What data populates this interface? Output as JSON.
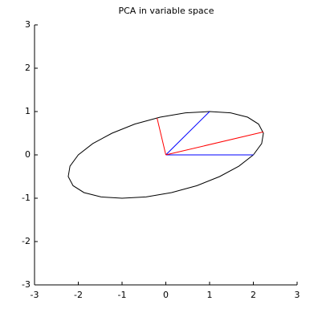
{
  "chart_data": {
    "type": "line",
    "title": "PCA in variable space",
    "xlim": [
      -3,
      3
    ],
    "ylim": [
      -3,
      3
    ],
    "xticks": [
      -3,
      -2,
      -1,
      0,
      1,
      2,
      3
    ],
    "yticks": [
      -3,
      -2,
      -1,
      0,
      1,
      2,
      3
    ],
    "series": [
      {
        "color": "#000000",
        "x": [
          2,
          2.19,
          2.23,
          2.12,
          1.87,
          1.48,
          1,
          0.45,
          -0.13,
          -0.71,
          -1.23,
          -1.67,
          -2,
          -2.19,
          -2.23,
          -2.12,
          -1.87,
          -1.48,
          -1,
          -0.45,
          0.13,
          0.71,
          1.23,
          1.67,
          2
        ],
        "values": [
          0,
          0.26,
          0.5,
          0.71,
          0.87,
          0.97,
          1,
          0.97,
          0.87,
          0.71,
          0.5,
          0.26,
          0,
          -0.26,
          -0.5,
          -0.71,
          -0.87,
          -0.97,
          -1,
          -0.97,
          -0.87,
          -0.71,
          -0.5,
          -0.26,
          0
        ]
      },
      {
        "color": "#0000ff",
        "x": [
          0,
          1
        ],
        "values": [
          0,
          1
        ]
      },
      {
        "color": "#0000ff",
        "x": [
          0,
          2
        ],
        "values": [
          0,
          0
        ]
      },
      {
        "color": "#ff0000",
        "x": [
          0,
          2.23
        ],
        "values": [
          0,
          0.53
        ]
      },
      {
        "color": "#ff0000",
        "x": [
          0,
          -0.2
        ],
        "values": [
          0,
          0.85
        ]
      }
    ]
  }
}
